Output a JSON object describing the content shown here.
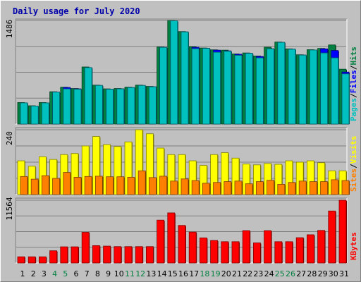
{
  "chart_data": {
    "title": "Daily usage for July 2020",
    "type": "bar",
    "categories": [
      "1",
      "2",
      "3",
      "4",
      "5",
      "6",
      "7",
      "8",
      "9",
      "10",
      "11",
      "12",
      "13",
      "14",
      "15",
      "16",
      "17",
      "18",
      "19",
      "20",
      "21",
      "22",
      "23",
      "24",
      "25",
      "26",
      "27",
      "28",
      "29",
      "30",
      "31"
    ],
    "weekend_days": [
      "4",
      "5",
      "11",
      "12",
      "18",
      "19",
      "25",
      "26"
    ],
    "panels": [
      {
        "id": "top",
        "y_max_label": "1486",
        "ymax": 1486,
        "side_labels": [
          {
            "text": "Pages",
            "color": "#00c0c0"
          },
          {
            "text": "/",
            "color": "#000000"
          },
          {
            "text": "Files",
            "color": "#0000ff"
          },
          {
            "text": "/",
            "color": "#000000"
          },
          {
            "text": "Hits",
            "color": "#008040"
          }
        ],
        "series": [
          {
            "name": "Hits",
            "color": "#008040",
            "offset": 0,
            "values": [
              309,
              263,
              309,
              464,
              529,
              510,
              819,
              559,
              505,
              510,
              530,
              559,
              540,
              1105,
              1486,
              1327,
              1110,
              1091,
              1065,
              1060,
              1006,
              1020,
              977,
              1102,
              1177,
              1079,
              994,
              1067,
              1085,
              1135,
              787
            ]
          },
          {
            "name": "Files",
            "color": "#0000ff",
            "offset": 4,
            "values": [
              304,
              259,
              304,
              459,
              525,
              505,
              810,
              554,
              500,
              505,
              525,
              554,
              535,
              1100,
              1481,
              1322,
              1100,
              1086,
              1060,
              1050,
              1001,
              1015,
              970,
              1080,
              1172,
              1074,
              989,
              1062,
              1079,
              1055,
              746
            ]
          },
          {
            "name": "Pages",
            "color": "#00c0c0",
            "offset": 4,
            "values": [
              304,
              259,
              304,
              459,
              505,
              500,
              810,
              554,
              500,
              505,
              525,
              554,
              535,
              1100,
              1481,
              1322,
              1081,
              1086,
              1030,
              1045,
              986,
              1015,
              950,
              1080,
              1172,
              1074,
              989,
              1062,
              1020,
              950,
              720
            ]
          }
        ]
      },
      {
        "id": "middle",
        "y_max_label": "240",
        "ymax": 240,
        "side_labels": [
          {
            "text": "Sites",
            "color": "#ff8000"
          },
          {
            "text": "/",
            "color": "#000000"
          },
          {
            "text": "Visits",
            "color": "#ffff00"
          }
        ],
        "series": [
          {
            "name": "Visits",
            "color": "#ffff00",
            "offset": 0,
            "values": [
              125,
              105,
              140,
              130,
              148,
              152,
              180,
              215,
              185,
              178,
              195,
              240,
              225,
              172,
              148,
              148,
              125,
              108,
              148,
              155,
              135,
              113,
              110,
              115,
              112,
              125,
              120,
              125,
              118,
              88,
              88
            ]
          },
          {
            "name": "Sites",
            "color": "#ff8000",
            "offset": 4,
            "values": [
              67,
              57,
              70,
              60,
              82,
              64,
              67,
              68,
              66,
              66,
              64,
              88,
              63,
              68,
              50,
              58,
              52,
              42,
              45,
              48,
              50,
              40,
              48,
              53,
              38,
              45,
              50,
              48,
              48,
              55,
              52
            ]
          }
        ]
      },
      {
        "id": "bottom",
        "y_max_label": "11564",
        "ymax": 11564,
        "side_labels": [
          {
            "text": "KBytes",
            "color": "#ff0000"
          }
        ],
        "series": [
          {
            "name": "KBytes",
            "color": "#ff0000",
            "offset": 0,
            "values": [
              1140,
              1140,
              1140,
              2250,
              2980,
              2980,
              5650,
              3200,
              3110,
              3020,
              3020,
              3020,
              3020,
              7900,
              9230,
              6920,
              5700,
              4620,
              4150,
              3920,
              3920,
              5960,
              3700,
              5960,
              3920,
              3920,
              4660,
              5200,
              6000,
              9580,
              11564
            ]
          }
        ]
      }
    ]
  }
}
